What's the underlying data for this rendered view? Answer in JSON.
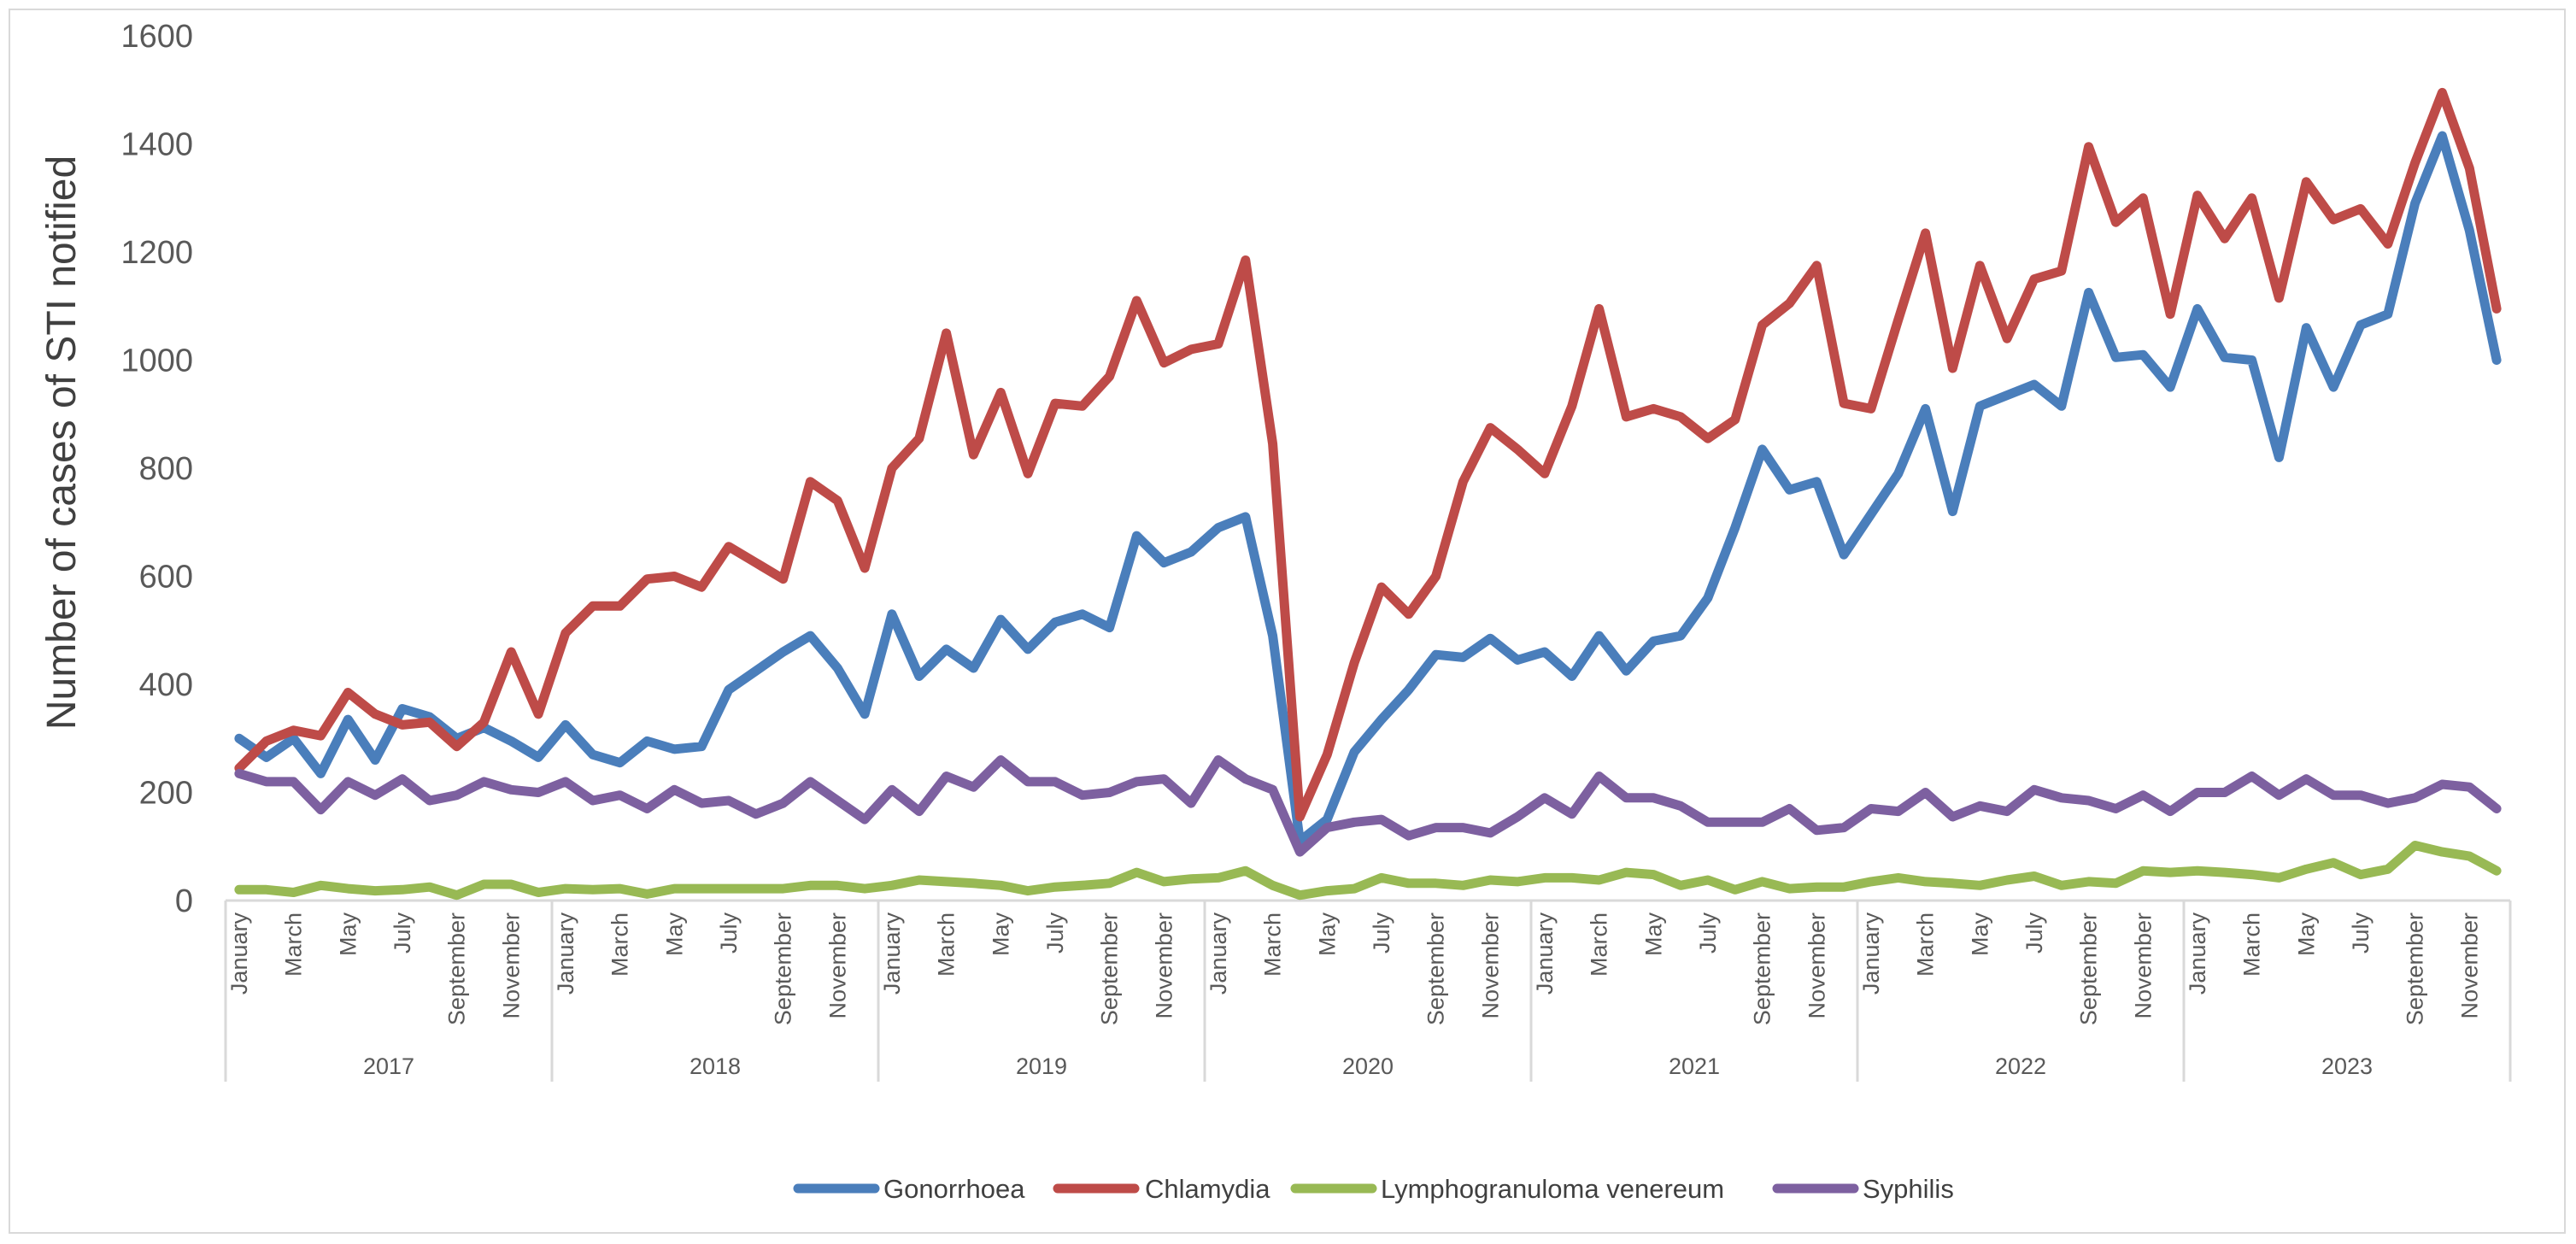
{
  "chart_data": {
    "type": "line",
    "title": "",
    "xlabel": "",
    "ylabel": "Number of cases of STI notified",
    "ylim": [
      0,
      1600
    ],
    "yticks": [
      0,
      200,
      400,
      600,
      800,
      1000,
      1200,
      1400,
      1600
    ],
    "grid": false,
    "legend_position": "bottom",
    "years": [
      "2017",
      "2018",
      "2019",
      "2020",
      "2021",
      "2022",
      "2023"
    ],
    "month_labels": [
      "January",
      "",
      "March",
      "",
      "May",
      "",
      "July",
      "",
      "September",
      "",
      "November",
      ""
    ],
    "series": [
      {
        "name": "Gonorrhoea",
        "color": "#4a7ebb",
        "values": [
          300,
          265,
          300,
          235,
          335,
          260,
          355,
          340,
          300,
          320,
          295,
          265,
          325,
          270,
          255,
          295,
          280,
          285,
          390,
          425,
          460,
          490,
          430,
          345,
          530,
          415,
          465,
          430,
          520,
          465,
          515,
          530,
          505,
          675,
          625,
          645,
          690,
          710,
          490,
          110,
          150,
          275,
          335,
          390,
          455,
          450,
          485,
          445,
          460,
          415,
          490,
          425,
          480,
          490,
          560,
          690,
          835,
          760,
          775,
          640,
          715,
          790,
          910,
          720,
          915,
          935,
          955,
          915,
          1125,
          1005,
          1010,
          950,
          1095,
          1005,
          1000,
          820,
          1060,
          950,
          1065,
          1085,
          1290,
          1415,
          1240,
          1000
        ]
      },
      {
        "name": "Chlamydia",
        "color": "#be4b48",
        "values": [
          245,
          295,
          315,
          305,
          385,
          345,
          325,
          330,
          285,
          330,
          460,
          345,
          495,
          545,
          545,
          595,
          600,
          580,
          655,
          625,
          595,
          775,
          740,
          615,
          800,
          855,
          1050,
          825,
          940,
          790,
          920,
          915,
          970,
          1110,
          995,
          1020,
          1030,
          1185,
          845,
          155,
          270,
          440,
          580,
          530,
          600,
          775,
          875,
          835,
          790,
          915,
          1095,
          895,
          910,
          895,
          855,
          890,
          1065,
          1105,
          1175,
          920,
          910,
          1075,
          1235,
          985,
          1175,
          1040,
          1150,
          1165,
          1395,
          1255,
          1300,
          1085,
          1305,
          1225,
          1300,
          1115,
          1330,
          1260,
          1280,
          1215,
          1365,
          1495,
          1355,
          1095
        ]
      },
      {
        "name": "Lymphogranuloma venereum",
        "color": "#98b954",
        "values": [
          20,
          20,
          15,
          28,
          22,
          18,
          20,
          25,
          10,
          30,
          30,
          15,
          22,
          20,
          22,
          12,
          22,
          22,
          22,
          22,
          22,
          28,
          28,
          22,
          28,
          38,
          35,
          32,
          28,
          18,
          25,
          28,
          32,
          52,
          35,
          40,
          42,
          55,
          28,
          10,
          18,
          22,
          42,
          32,
          32,
          28,
          38,
          35,
          42,
          42,
          38,
          52,
          48,
          28,
          38,
          20,
          35,
          22,
          25,
          25,
          35,
          42,
          35,
          32,
          28,
          38,
          45,
          28,
          35,
          32,
          55,
          52,
          55,
          52,
          48,
          42,
          58,
          70,
          48,
          58,
          102,
          90,
          82,
          55
        ]
      },
      {
        "name": "Syphilis",
        "color": "#7d60a0",
        "values": [
          235,
          220,
          220,
          168,
          220,
          195,
          225,
          185,
          195,
          220,
          205,
          200,
          220,
          185,
          195,
          170,
          205,
          180,
          185,
          160,
          180,
          220,
          185,
          150,
          205,
          165,
          230,
          210,
          260,
          220,
          220,
          195,
          200,
          220,
          225,
          180,
          260,
          225,
          205,
          90,
          135,
          145,
          150,
          120,
          135,
          135,
          125,
          155,
          190,
          160,
          230,
          190,
          190,
          175,
          145,
          145,
          145,
          170,
          130,
          135,
          170,
          165,
          200,
          155,
          175,
          165,
          205,
          190,
          185,
          170,
          195,
          165,
          200,
          200,
          230,
          195,
          225,
          195,
          195,
          180,
          190,
          215,
          210,
          170
        ]
      }
    ]
  }
}
